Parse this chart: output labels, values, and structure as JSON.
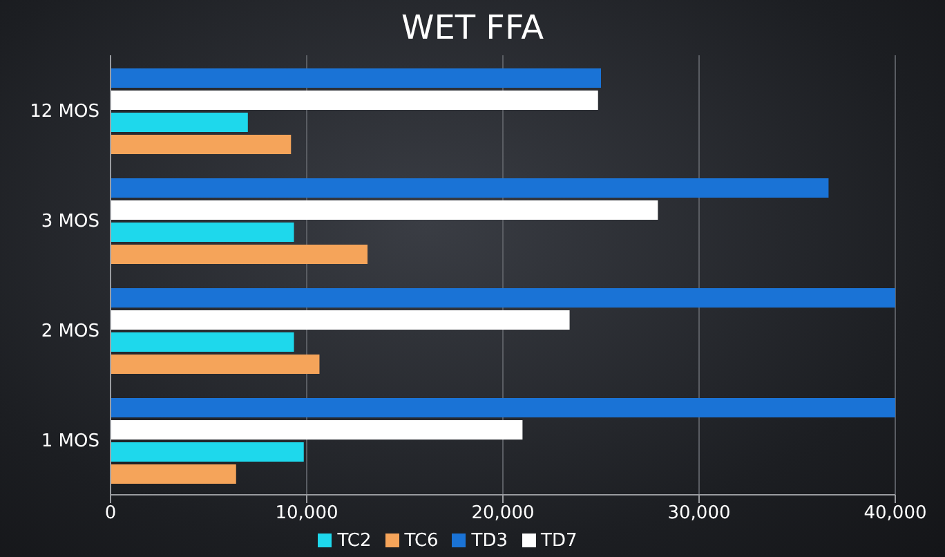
{
  "chart_data": {
    "type": "bar",
    "orientation": "horizontal",
    "title": "WET FFA",
    "categories": [
      "12 MOS",
      "3 MOS",
      "2 MOS",
      "1 MOS"
    ],
    "series": [
      {
        "name": "TD3",
        "color": "#1a73d6",
        "values": [
          25000,
          36600,
          40000,
          40000
        ]
      },
      {
        "name": "TD7",
        "color": "#ffffff",
        "values": [
          24850,
          27900,
          23400,
          21000
        ]
      },
      {
        "name": "TC2",
        "color": "#1ed8ec",
        "values": [
          7000,
          9350,
          9350,
          9850
        ]
      },
      {
        "name": "TC6",
        "color": "#f5a45a",
        "values": [
          9200,
          13100,
          10650,
          6400
        ]
      }
    ],
    "xlim": [
      0,
      40000
    ],
    "xticks": [
      {
        "value": 0,
        "label": "0"
      },
      {
        "value": 10000,
        "label": "10,000"
      },
      {
        "value": 20000,
        "label": "20,000"
      },
      {
        "value": 30000,
        "label": "30,000"
      },
      {
        "value": 40000,
        "label": "40,000"
      }
    ],
    "grid": "x",
    "legend": "bottom"
  }
}
